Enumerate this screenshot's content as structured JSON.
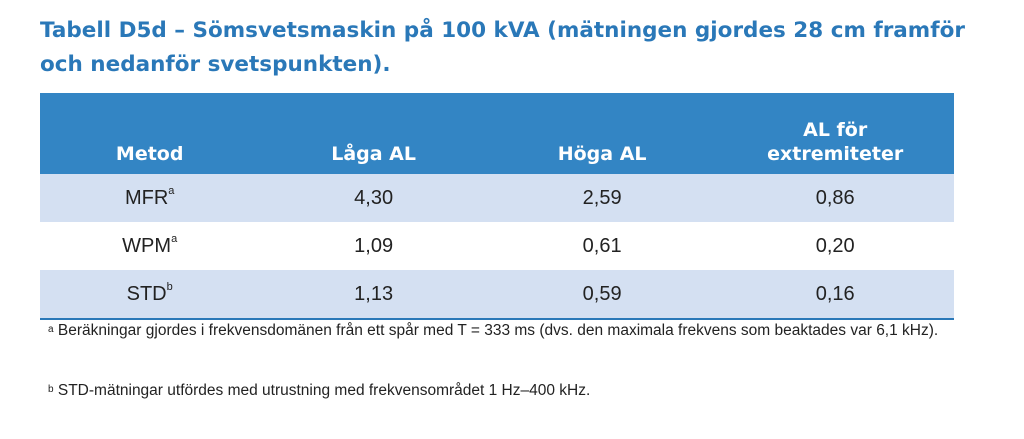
{
  "title": "Tabell D5d – Sömsvetsmaskin på 100 kVA (mätningen gjordes 28 cm framför och nedanför svetspunkten).",
  "table": {
    "headers": [
      "Metod",
      "Låga AL",
      "Höga AL",
      "AL för extremiteter"
    ],
    "rows": [
      {
        "method": "MFR",
        "sup": "a",
        "low": "4,30",
        "high": "2,59",
        "extremities": "0,86"
      },
      {
        "method": "WPM",
        "sup": "a",
        "low": "1,09",
        "high": "0,61",
        "extremities": "0,20"
      },
      {
        "method": "STD",
        "sup": "b",
        "low": "1,13",
        "high": "0,59",
        "extremities": "0,16"
      }
    ],
    "colors": {
      "header_bg": "#3385c4",
      "shaded_row": "#d4e0f2",
      "title": "#2a78b8"
    }
  },
  "footnotes": [
    {
      "mark": "a",
      "text": "Beräkningar gjordes i frekvensdomänen från ett spår med T = 333 ms (dvs. den maximala frekvens som beaktades var 6,1 kHz)."
    },
    {
      "mark": "b",
      "text": "STD-mätningar utfördes med utrustning med frekvensområdet 1 Hz–400 kHz."
    }
  ]
}
